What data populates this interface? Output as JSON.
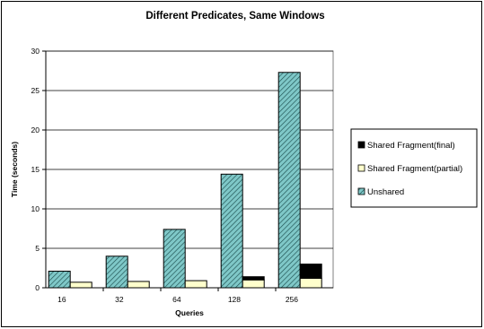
{
  "chart_data": {
    "type": "bar",
    "title": "Different Predicates, Same Windows",
    "xlabel": "Queries",
    "ylabel": "Time (seconds)",
    "categories": [
      "16",
      "32",
      "64",
      "128",
      "256"
    ],
    "ylim": [
      0,
      30
    ],
    "yticks": [
      "0",
      "5",
      "10",
      "15",
      "20",
      "25",
      "30"
    ],
    "grid": true,
    "legend_position": "right",
    "series": [
      {
        "name": "Unshared",
        "values": [
          2.1,
          4.0,
          7.4,
          14.4,
          27.3
        ],
        "color": "#7FC8C8",
        "pattern": "diagonal-hatch"
      },
      {
        "name": "Shared Fragment(partial)",
        "values": [
          0.7,
          0.8,
          0.9,
          1.0,
          1.2
        ],
        "color": "#FFFFCC",
        "stack": "shared"
      },
      {
        "name": "Shared Fragment(final)",
        "values": [
          0.0,
          0.0,
          0.0,
          0.4,
          1.8
        ],
        "color": "#000000",
        "stack": "shared"
      }
    ],
    "legend_order": [
      "Shared Fragment(final)",
      "Shared Fragment(partial)",
      "Unshared"
    ]
  }
}
